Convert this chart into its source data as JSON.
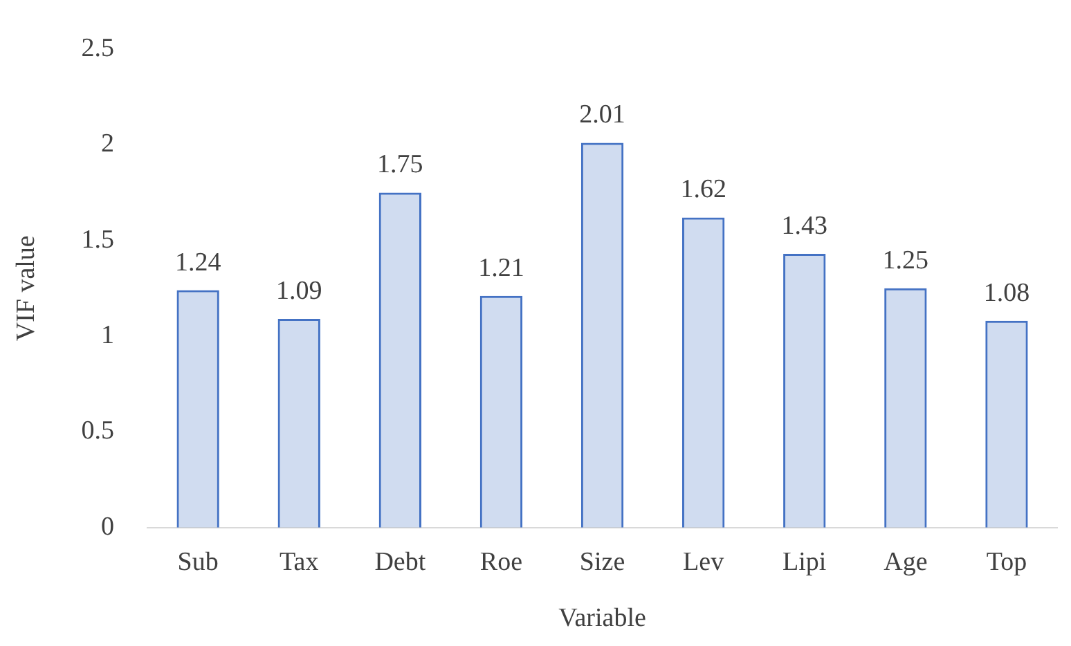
{
  "chart_data": {
    "type": "bar",
    "xlabel": "Variable",
    "ylabel": "VIF value",
    "categories": [
      "Sub",
      "Tax",
      "Debt",
      "Roe",
      "Size",
      "Lev",
      "Lipi",
      "Age",
      "Top"
    ],
    "values": [
      1.24,
      1.09,
      1.75,
      1.21,
      2.01,
      1.62,
      1.43,
      1.25,
      1.08
    ],
    "color": "#4472c4",
    "ylim": [
      0,
      2.5
    ],
    "yticks": [
      0,
      0.5,
      1,
      1.5,
      2,
      2.5
    ],
    "grid": false,
    "legend": false,
    "data_labels": true
  }
}
